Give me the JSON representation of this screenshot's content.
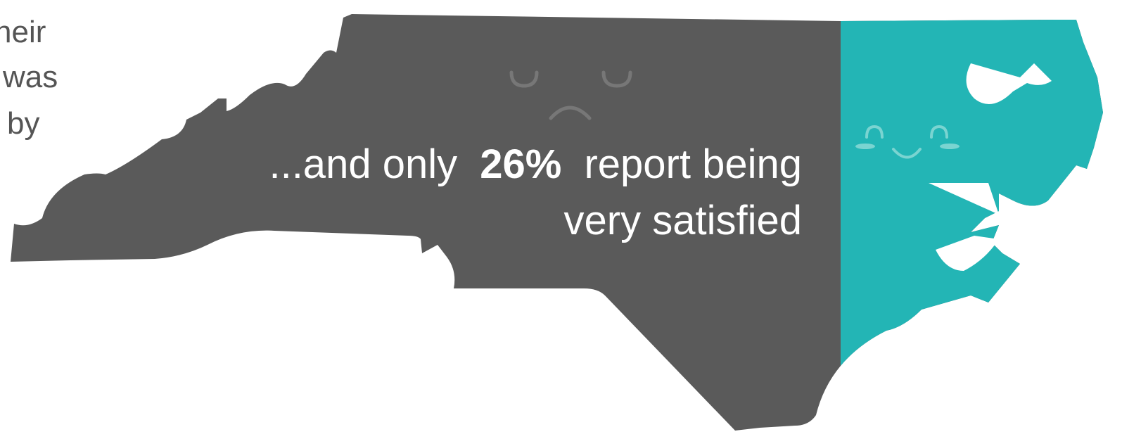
{
  "left_text": [
    "heir",
    "was",
    "by"
  ],
  "callout": {
    "before": "...and only",
    "highlight": "26%",
    "after": "report being",
    "line2": "very satisfied"
  }
}
